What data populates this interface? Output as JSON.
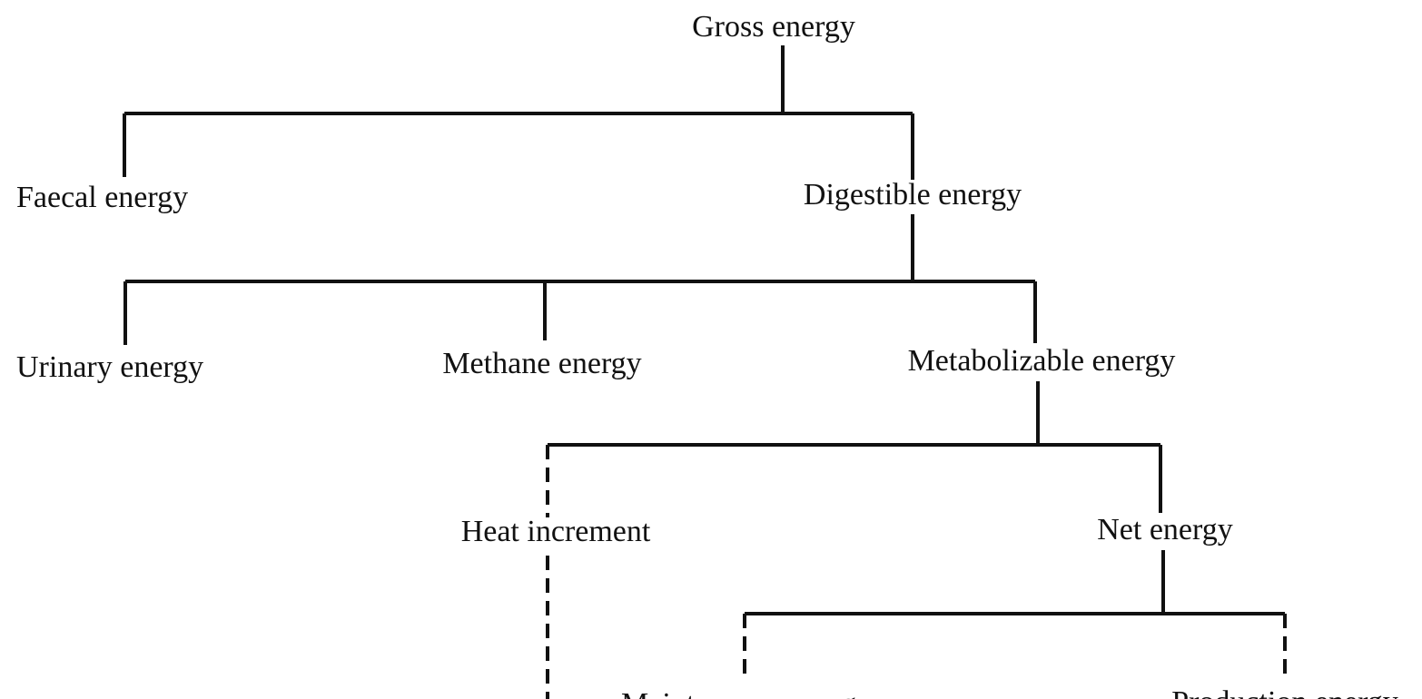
{
  "nodes": [
    {
      "label": "Gross energy"
    },
    {
      "label": "Faecal energy"
    },
    {
      "label": "Digestible energy"
    },
    {
      "label": "Urinary energy"
    },
    {
      "label": "Methane energy"
    },
    {
      "label": "Metabolizable energy"
    },
    {
      "label": "Heat increment"
    },
    {
      "label": "Net energy"
    },
    {
      "label": "Maintenance energy"
    },
    {
      "label": "Production energy"
    }
  ]
}
